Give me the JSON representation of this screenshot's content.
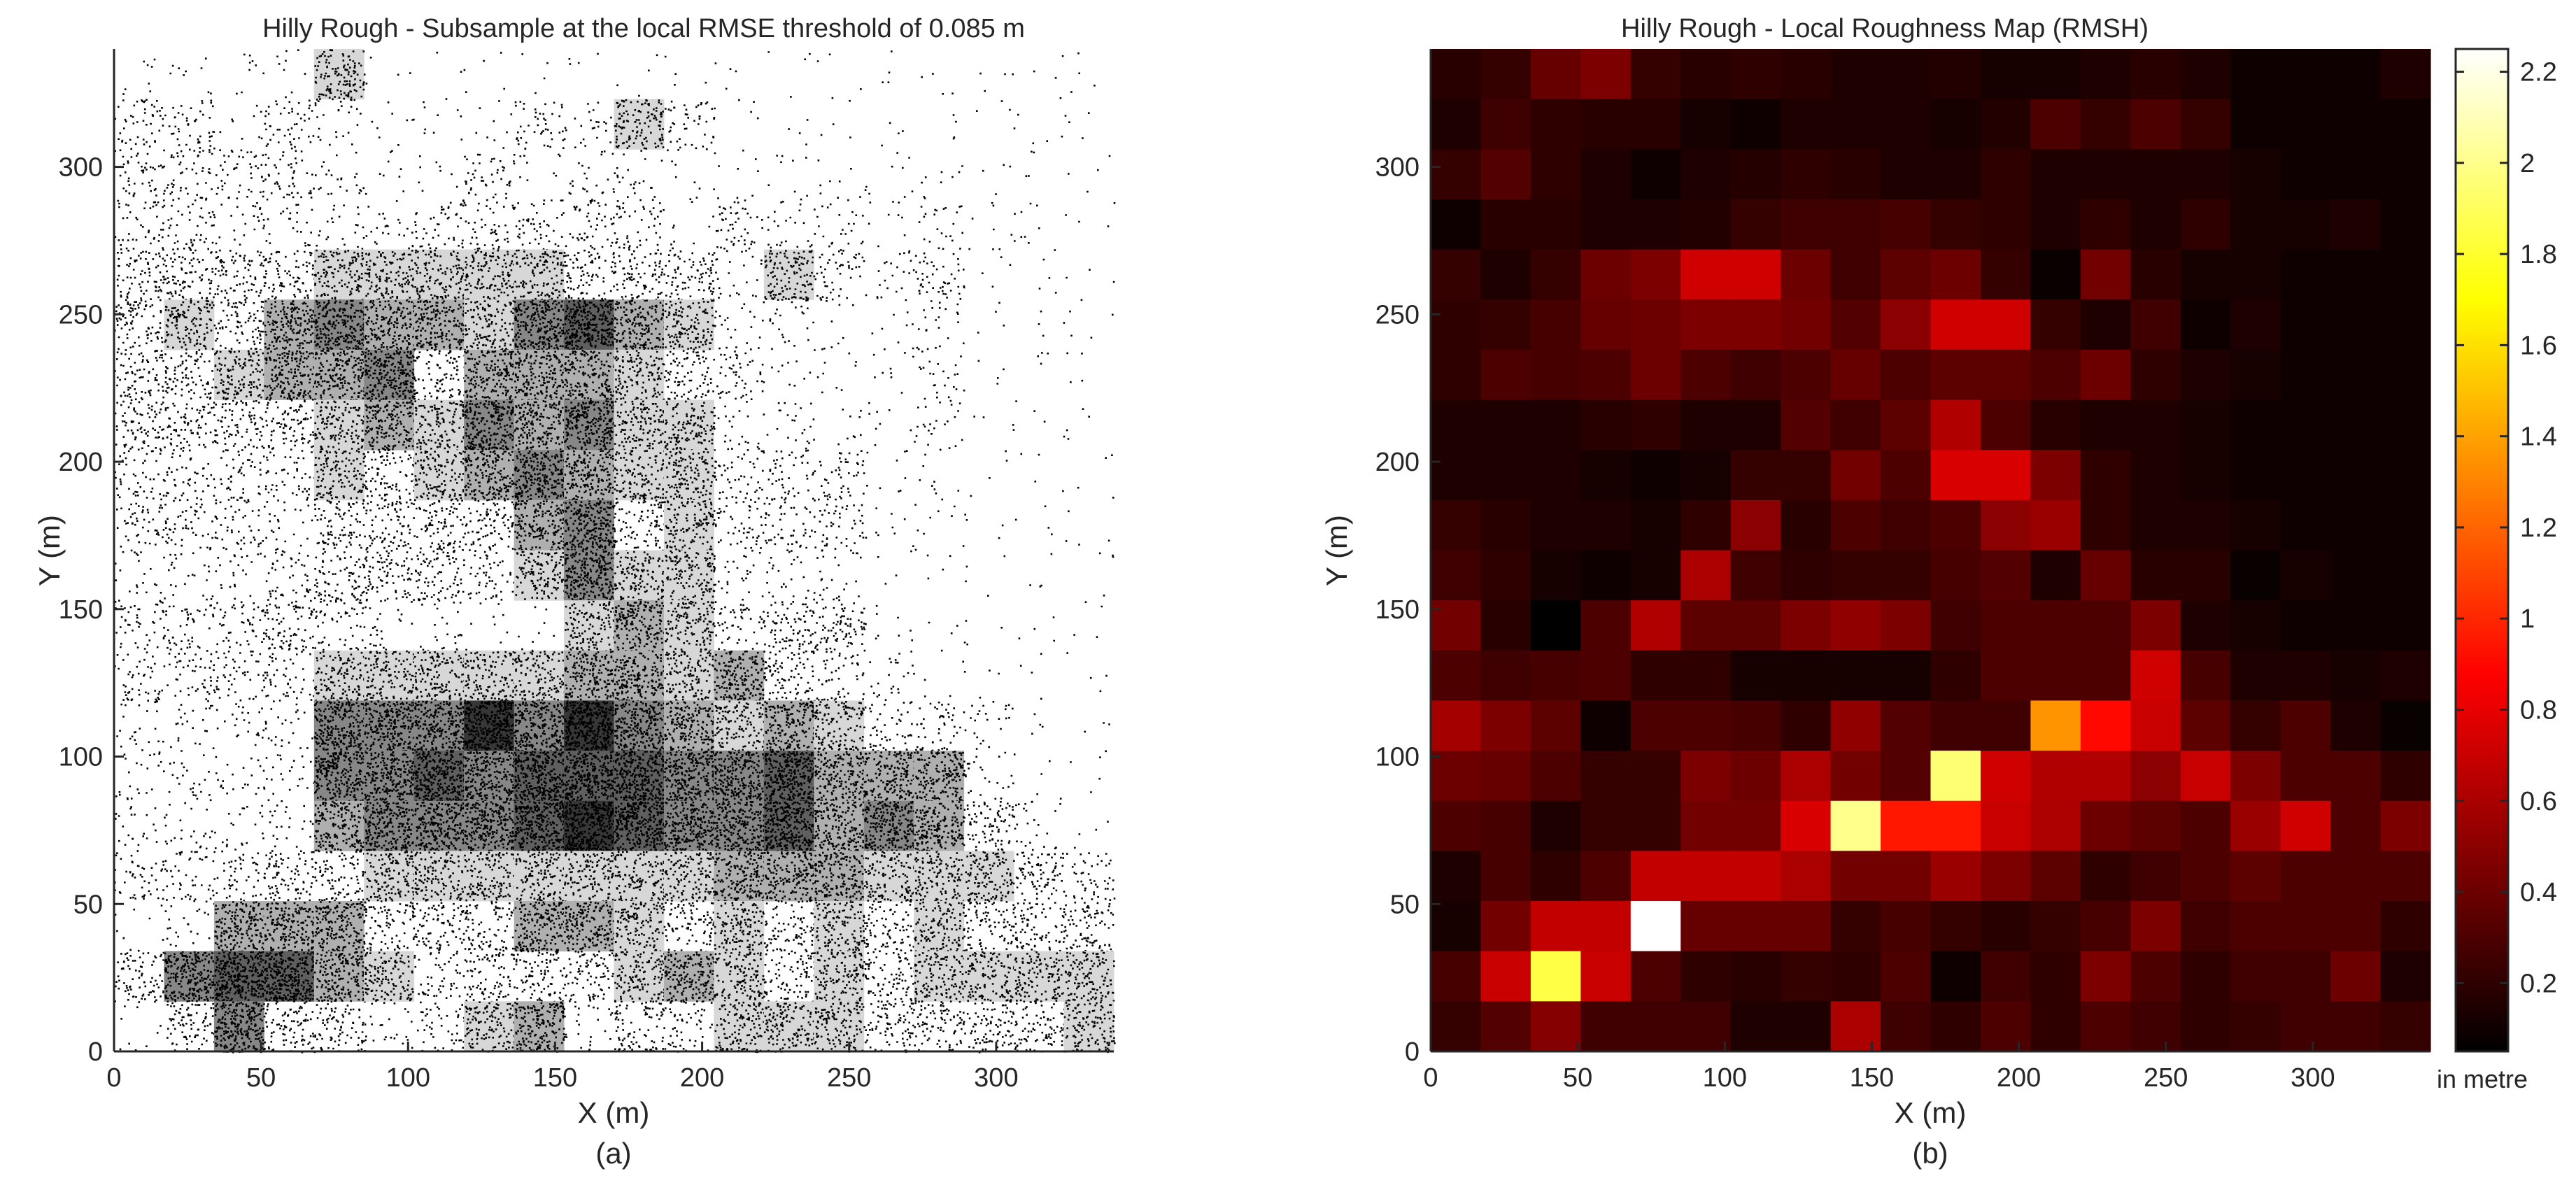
{
  "chart_data": [
    {
      "type": "scatter",
      "title": "Hilly Rough - Subsample at the local RMSE threshold of 0.085 m",
      "xlabel": "X (m)",
      "ylabel": "Y (m)",
      "caption": "(a)",
      "xlim": [
        0,
        340
      ],
      "ylim": [
        0,
        340
      ],
      "xticks": [
        0,
        50,
        100,
        150,
        200,
        250,
        300
      ],
      "yticks": [
        0,
        50,
        100,
        150,
        200,
        250,
        300
      ],
      "grid": false,
      "cell_size": 17,
      "density_grid_rows_top_to_bottom": [
        "11115000000000000000",
        "33132111325300000000",
        "33332113122111111000",
        "33222233333132212110",
        "44445555544425323000",
        "45467665786522112000",
        "44566746665431112000",
        "44445657675522112000",
        "33335456765533311000",
        "33324444674533311000",
        "22234443575522200000",
        "33343221156534410000",
        "33335555566564320000",
        "22227779797656533200",
        "22227787888778666200",
        "22226777898778676420",
        "33344555555566655543",
        "12666444665454545444",
        "47886534445654545555",
        "14744235624355544445"
      ]
    },
    {
      "type": "heatmap",
      "title": "Hilly Rough - Local Roughness Map (RMSH)",
      "xlabel": "X (m)",
      "ylabel": "Y (m)",
      "caption": "(b)",
      "xlim": [
        0,
        340
      ],
      "ylim": [
        0,
        340
      ],
      "xticks": [
        0,
        50,
        100,
        150,
        200,
        250,
        300
      ],
      "yticks": [
        0,
        50,
        100,
        150,
        200,
        250,
        300
      ],
      "grid": false,
      "cell_size": 17,
      "colormap": "hot",
      "colorbar": {
        "min": 0.05,
        "max": 2.25,
        "ticks": [
          0.2,
          0.4,
          0.6,
          0.8,
          1,
          1.2,
          1.4,
          1.6,
          1.8,
          2,
          2.2
        ],
        "unit_label": "in metre"
      },
      "values_rows_top_to_bottom": [
        [
          0.18,
          0.22,
          0.38,
          0.45,
          0.22,
          0.18,
          0.2,
          0.18,
          0.15,
          0.15,
          0.16,
          0.12,
          0.12,
          0.15,
          0.18,
          0.15,
          0.1,
          0.1,
          0.1,
          0.15
        ],
        [
          0.15,
          0.25,
          0.2,
          0.18,
          0.18,
          0.12,
          0.1,
          0.15,
          0.15,
          0.15,
          0.12,
          0.16,
          0.3,
          0.22,
          0.3,
          0.22,
          0.1,
          0.1,
          0.1,
          0.1
        ],
        [
          0.22,
          0.32,
          0.2,
          0.15,
          0.1,
          0.15,
          0.17,
          0.2,
          0.18,
          0.15,
          0.15,
          0.2,
          0.15,
          0.15,
          0.15,
          0.15,
          0.12,
          0.1,
          0.1,
          0.1
        ],
        [
          0.1,
          0.18,
          0.18,
          0.15,
          0.15,
          0.16,
          0.22,
          0.25,
          0.25,
          0.28,
          0.22,
          0.2,
          0.15,
          0.2,
          0.15,
          0.2,
          0.12,
          0.12,
          0.15,
          0.1
        ],
        [
          0.22,
          0.15,
          0.22,
          0.4,
          0.45,
          0.72,
          0.72,
          0.4,
          0.25,
          0.35,
          0.4,
          0.22,
          0.08,
          0.42,
          0.18,
          0.12,
          0.12,
          0.1,
          0.1,
          0.1
        ],
        [
          0.2,
          0.22,
          0.28,
          0.38,
          0.4,
          0.45,
          0.45,
          0.42,
          0.32,
          0.5,
          0.72,
          0.72,
          0.22,
          0.15,
          0.25,
          0.1,
          0.15,
          0.1,
          0.1,
          0.1
        ],
        [
          0.2,
          0.3,
          0.28,
          0.3,
          0.4,
          0.3,
          0.25,
          0.3,
          0.38,
          0.3,
          0.35,
          0.35,
          0.3,
          0.4,
          0.2,
          0.15,
          0.12,
          0.1,
          0.1,
          0.1
        ],
        [
          0.15,
          0.15,
          0.15,
          0.18,
          0.2,
          0.15,
          0.15,
          0.32,
          0.25,
          0.35,
          0.62,
          0.3,
          0.18,
          0.15,
          0.15,
          0.12,
          0.1,
          0.1,
          0.1,
          0.1
        ],
        [
          0.15,
          0.15,
          0.15,
          0.12,
          0.1,
          0.12,
          0.22,
          0.22,
          0.42,
          0.3,
          0.75,
          0.75,
          0.45,
          0.2,
          0.15,
          0.12,
          0.1,
          0.1,
          0.1,
          0.1
        ],
        [
          0.22,
          0.18,
          0.15,
          0.15,
          0.12,
          0.2,
          0.5,
          0.18,
          0.3,
          0.25,
          0.3,
          0.5,
          0.55,
          0.2,
          0.15,
          0.15,
          0.12,
          0.1,
          0.1,
          0.1
        ],
        [
          0.25,
          0.2,
          0.12,
          0.1,
          0.12,
          0.6,
          0.25,
          0.2,
          0.22,
          0.22,
          0.28,
          0.32,
          0.15,
          0.38,
          0.18,
          0.18,
          0.08,
          0.12,
          0.1,
          0.1
        ],
        [
          0.42,
          0.18,
          0.05,
          0.3,
          0.62,
          0.35,
          0.35,
          0.45,
          0.52,
          0.45,
          0.25,
          0.3,
          0.3,
          0.3,
          0.45,
          0.15,
          0.12,
          0.1,
          0.1,
          0.1
        ],
        [
          0.3,
          0.25,
          0.28,
          0.3,
          0.2,
          0.2,
          0.12,
          0.12,
          0.12,
          0.12,
          0.2,
          0.3,
          0.3,
          0.3,
          0.72,
          0.28,
          0.15,
          0.15,
          0.12,
          0.15
        ],
        [
          0.58,
          0.45,
          0.35,
          0.1,
          0.3,
          0.3,
          0.28,
          0.2,
          0.52,
          0.32,
          0.25,
          0.25,
          1.35,
          0.9,
          0.7,
          0.35,
          0.22,
          0.3,
          0.15,
          0.08
        ],
        [
          0.4,
          0.38,
          0.3,
          0.22,
          0.22,
          0.45,
          0.4,
          0.6,
          0.42,
          0.32,
          1.95,
          0.72,
          0.62,
          0.62,
          0.5,
          0.7,
          0.45,
          0.3,
          0.3,
          0.2
        ],
        [
          0.3,
          0.28,
          0.15,
          0.22,
          0.22,
          0.42,
          0.42,
          0.75,
          2.0,
          0.95,
          0.95,
          0.7,
          0.6,
          0.4,
          0.35,
          0.3,
          0.55,
          0.72,
          0.3,
          0.45
        ],
        [
          0.15,
          0.28,
          0.2,
          0.3,
          0.68,
          0.68,
          0.68,
          0.6,
          0.42,
          0.42,
          0.55,
          0.45,
          0.35,
          0.2,
          0.25,
          0.3,
          0.35,
          0.3,
          0.3,
          0.3
        ],
        [
          0.12,
          0.42,
          0.68,
          0.68,
          2.25,
          0.38,
          0.38,
          0.38,
          0.22,
          0.28,
          0.22,
          0.18,
          0.22,
          0.28,
          0.45,
          0.25,
          0.3,
          0.3,
          0.3,
          0.2
        ],
        [
          0.28,
          0.7,
          1.85,
          0.7,
          0.3,
          0.2,
          0.18,
          0.22,
          0.2,
          0.3,
          0.1,
          0.25,
          0.2,
          0.45,
          0.3,
          0.2,
          0.25,
          0.25,
          0.4,
          0.15
        ],
        [
          0.22,
          0.32,
          0.48,
          0.25,
          0.25,
          0.25,
          0.15,
          0.15,
          0.6,
          0.25,
          0.2,
          0.3,
          0.2,
          0.3,
          0.25,
          0.2,
          0.22,
          0.25,
          0.25,
          0.22
        ]
      ]
    }
  ]
}
